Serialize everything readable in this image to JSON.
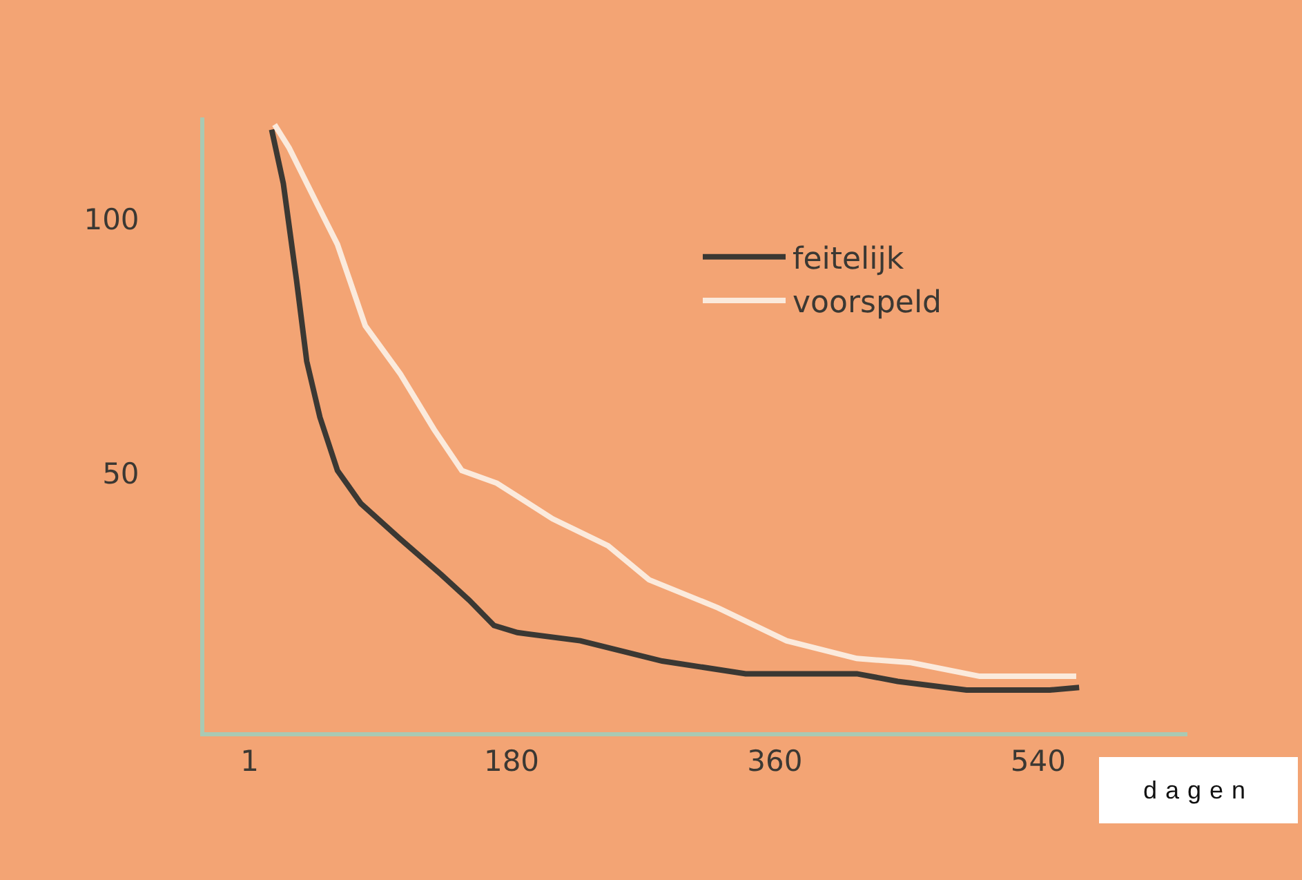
{
  "chart_data": {
    "type": "line",
    "xlabel": "dagen",
    "xlim": [
      -30,
      642
    ],
    "ylim": [
      -1,
      120
    ],
    "xticks": [
      1,
      180,
      360,
      540
    ],
    "yticks": [
      50,
      100
    ],
    "legend": "top right",
    "grid": false,
    "marker": "none",
    "line_style": "solid",
    "series": [
      {
        "name": "feitelijk",
        "color": "#3b3833",
        "x": [
          16,
          24,
          33,
          40,
          49,
          61,
          77,
          104,
          132,
          151,
          168,
          184,
          227,
          283,
          340,
          416,
          444,
          491,
          548,
          568
        ],
        "values": [
          117.6,
          107,
          88,
          72,
          61,
          50.5,
          44,
          37,
          30,
          25,
          20,
          18.6,
          17,
          13,
          10.5,
          10.5,
          9,
          7.3,
          7.3,
          7.8
        ]
      },
      {
        "name": "voorspeld",
        "color": "#fbeadc",
        "x": [
          18,
          28,
          47,
          61,
          80,
          104,
          127,
          146,
          170,
          208,
          246,
          274,
          321,
          368,
          416,
          453,
          500,
          566
        ],
        "values": [
          118.6,
          114,
          103,
          95,
          79,
          69.5,
          58.6,
          50.5,
          48,
          41,
          35.7,
          29,
          23.5,
          17,
          13.5,
          12.7,
          10,
          10
        ]
      }
    ]
  }
}
